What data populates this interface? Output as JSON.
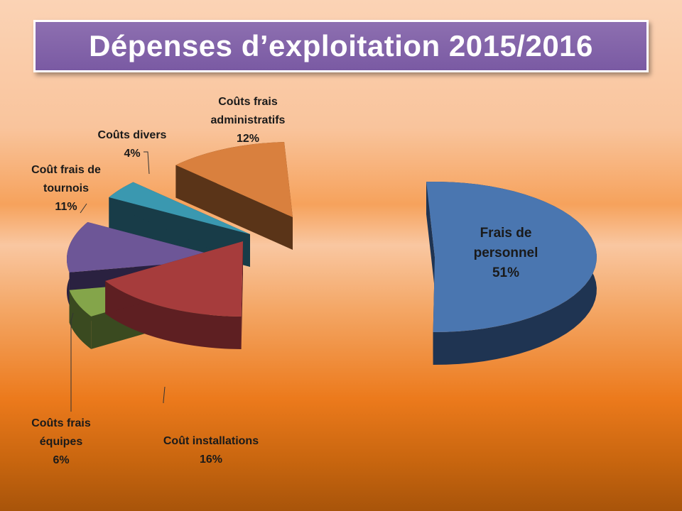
{
  "title": "Dépenses d’exploitation 2015/2016",
  "chart_data": {
    "type": "pie",
    "title": "Dépenses d’exploitation 2015/2016",
    "labels": [
      [
        "Frais de",
        "personnel",
        "51%"
      ],
      [
        "Coût installations",
        "16%"
      ],
      [
        "Coûts frais",
        "équipes",
        "6%"
      ],
      [
        "Coût frais de",
        "tournois",
        "11%"
      ],
      [
        "Coûts divers",
        "4%"
      ],
      [
        "Coûts frais",
        "administratifs",
        "12%"
      ]
    ],
    "slices": [
      {
        "name": "Frais de personnel",
        "value": 51,
        "color": "#4a76b0",
        "side": "#1f3452"
      },
      {
        "name": "Coût installations",
        "value": 16,
        "color": "#a63c3c",
        "side": "#5e1f22"
      },
      {
        "name": "Coûts frais équipes",
        "value": 6,
        "color": "#84a54a",
        "side": "#3a4a20"
      },
      {
        "name": "Coût frais de tournois",
        "value": 11,
        "color": "#6d5697",
        "side": "#2a2140"
      },
      {
        "name": "Coûts divers",
        "value": 4,
        "color": "#3a98b0",
        "side": "#183c48"
      },
      {
        "name": "Coûts frais administratifs",
        "value": 12,
        "color": "#d9803e",
        "side": "#5a3418"
      }
    ]
  }
}
